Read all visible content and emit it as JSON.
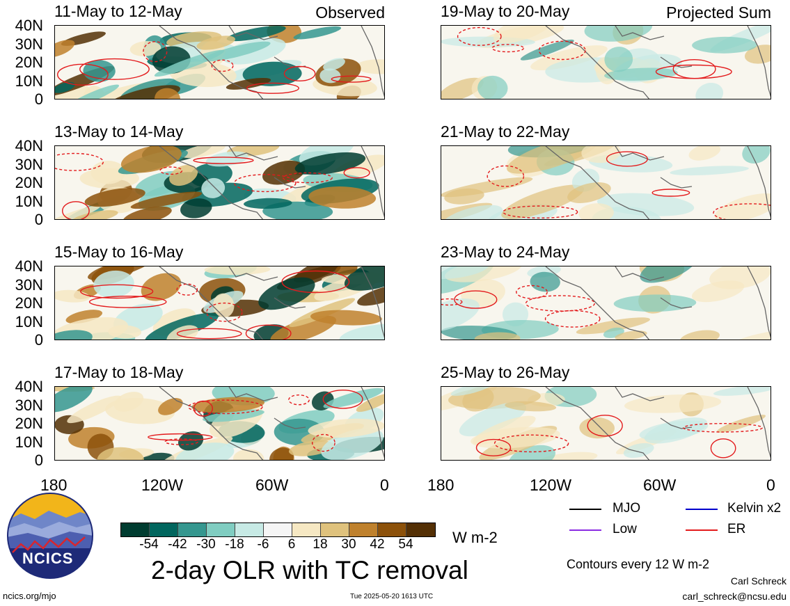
{
  "observed_tag": "Observed",
  "projected_tag": "Projected Sum",
  "panels_left": [
    {
      "title": "11-May to 12-May"
    },
    {
      "title": "13-May to 14-May"
    },
    {
      "title": "15-May to 16-May"
    },
    {
      "title": "17-May to 18-May"
    }
  ],
  "panels_right": [
    {
      "title": "19-May to 20-May"
    },
    {
      "title": "21-May to 22-May"
    },
    {
      "title": "23-May to 24-May"
    },
    {
      "title": "25-May to 26-May"
    }
  ],
  "lat_labels": [
    "40N",
    "30N",
    "20N",
    "10N",
    "0"
  ],
  "lon_labels": [
    "180",
    "120W",
    "60W",
    "0"
  ],
  "colorbar": {
    "colors": [
      "#003c30",
      "#01665e",
      "#35978f",
      "#80cdc1",
      "#c7eae5",
      "#f5f5f5",
      "#f6e8c3",
      "#dfc27d",
      "#bf812d",
      "#8c510a",
      "#543005"
    ],
    "ticks": [
      "-54",
      "-42",
      "-30",
      "-18",
      "-6",
      "6",
      "18",
      "30",
      "42",
      "54"
    ],
    "units": "W m-2"
  },
  "legend": {
    "items": [
      {
        "label": "MJO",
        "color": "#000000"
      },
      {
        "label": "Kelvin x2",
        "color": "#0000cc"
      },
      {
        "label": "Low",
        "color": "#8a2be2"
      },
      {
        "label": "ER",
        "color": "#e31a1c"
      }
    ],
    "contour_note": "Contours every 12 W m-2"
  },
  "main_title": "2-day OLR with TC removal",
  "logo_text": "NCICS",
  "footer": {
    "url": "ncics.org/mjo",
    "timestamp": "Tue 2025-05-20 1613 UTC",
    "author": "Carl Schreck",
    "email": "carl_schreck@ncsu.edu"
  },
  "chart_data": {
    "type": "heatmap",
    "title": "2-day OLR with TC removal",
    "variable": "OLR anomaly (W m-2)",
    "lat_range": [
      0,
      40
    ],
    "lon_range": [
      -180,
      0
    ],
    "color_levels": [
      -54,
      -42,
      -30,
      -18,
      -6,
      6,
      18,
      30,
      42,
      54
    ],
    "contour_interval": 12,
    "observed_periods": [
      "11-May to 12-May",
      "13-May to 14-May",
      "15-May to 16-May",
      "17-May to 18-May"
    ],
    "projected_periods": [
      "19-May to 20-May",
      "21-May to 22-May",
      "23-May to 24-May",
      "25-May to 26-May"
    ]
  }
}
